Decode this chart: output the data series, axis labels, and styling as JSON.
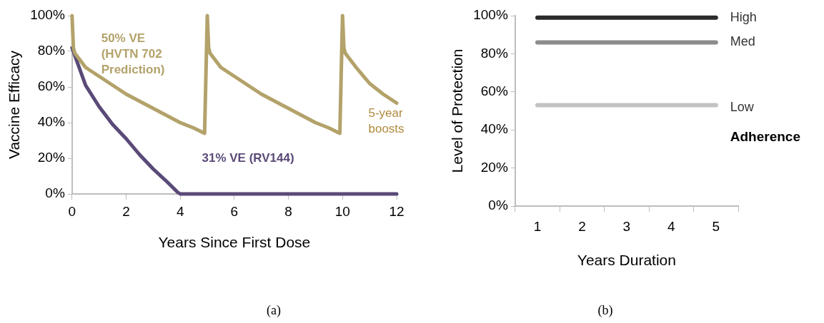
{
  "chart_data": [
    {
      "type": "line",
      "xlabel": "Years Since First Dose",
      "ylabel": "Vaccine Efficacy",
      "xlim": [
        0,
        12
      ],
      "xticks": [
        0,
        2,
        4,
        6,
        8,
        10,
        12
      ],
      "ylim": [
        0,
        100
      ],
      "yticks": [
        {
          "value": 0,
          "label": "0%"
        },
        {
          "value": 20,
          "label": "20%"
        },
        {
          "value": 40,
          "label": "40%"
        },
        {
          "value": 60,
          "label": "60%"
        },
        {
          "value": 80,
          "label": "80%"
        },
        {
          "value": 100,
          "label": "100%"
        }
      ],
      "grid": false,
      "legend": false,
      "marker": "none",
      "line_style": "solid",
      "annotations": [
        "5-year boosts",
        "(a)"
      ],
      "series": [
        {
          "name": "50% VE (HVTN 702 Prediction)",
          "color": "#b3a26a",
          "x": [
            0,
            0.05,
            0.1,
            0.5,
            1,
            1.5,
            2,
            2.5,
            3,
            3.5,
            4,
            4.5,
            4.9,
            5,
            5.05,
            5.1,
            5.5,
            6,
            6.5,
            7,
            7.5,
            8,
            8.5,
            9,
            9.5,
            9.9,
            10,
            10.05,
            10.1,
            10.5,
            11,
            11.5,
            12
          ],
          "values": [
            100,
            82,
            79,
            71,
            66,
            61,
            56,
            52,
            48,
            44,
            40,
            37,
            34,
            100,
            82,
            79,
            71,
            66,
            61,
            56,
            52,
            48,
            44,
            40,
            37,
            34,
            100,
            82,
            79,
            71,
            62,
            56,
            51
          ]
        },
        {
          "name": "31% VE (RV144)",
          "color": "#5a4a78",
          "x": [
            0,
            0.5,
            1,
            1.5,
            2,
            2.5,
            3,
            3.5,
            3.9,
            4,
            12
          ],
          "values": [
            82,
            61,
            49,
            39,
            31,
            22,
            14,
            7,
            1,
            0,
            0
          ]
        }
      ]
    },
    {
      "type": "line",
      "xlabel": "Years Duration",
      "ylabel": "Level of Protection",
      "legend_title": "Adherence",
      "categories": [
        "1",
        "2",
        "3",
        "4",
        "5"
      ],
      "ylim": [
        0,
        100
      ],
      "yticks": [
        {
          "value": 0,
          "label": "0%"
        },
        {
          "value": 20,
          "label": "20%"
        },
        {
          "value": 40,
          "label": "40%"
        },
        {
          "value": 60,
          "label": "60%"
        },
        {
          "value": 80,
          "label": "80%"
        },
        {
          "value": 100,
          "label": "100%"
        }
      ],
      "grid": false,
      "legend": false,
      "marker": "none",
      "line_style": "solid",
      "annotations": [
        "(b)"
      ],
      "series": [
        {
          "name": "High",
          "color": "#2b2b2b",
          "values": [
            99,
            99,
            99,
            99,
            99
          ]
        },
        {
          "name": "Med",
          "color": "#8c8c8c",
          "values": [
            86,
            86,
            86,
            86,
            86
          ]
        },
        {
          "name": "Low",
          "color": "#c2c2c2",
          "values": [
            53,
            53,
            53,
            53,
            53
          ]
        }
      ]
    }
  ]
}
